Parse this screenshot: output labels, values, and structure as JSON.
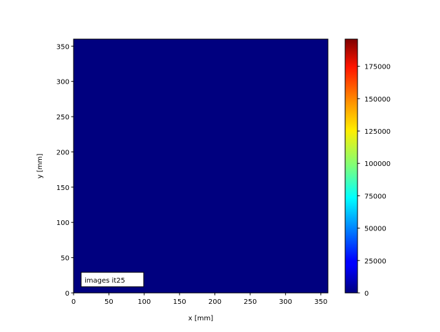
{
  "chart_data": {
    "type": "heatmap",
    "title": "",
    "xlabel": "x [mm]",
    "ylabel": "y [mm]",
    "xlim": [
      0,
      360
    ],
    "ylim": [
      0,
      360
    ],
    "xticks": [
      0,
      50,
      100,
      150,
      200,
      250,
      300,
      350
    ],
    "yticks": [
      0,
      50,
      100,
      150,
      200,
      250,
      300,
      350
    ],
    "values": [
      [
        0
      ]
    ],
    "colormap": "jet",
    "fill_color": "#00007f",
    "annotation": "images it25",
    "annotation_placement": "bottom-left",
    "colorbar": {
      "range": [
        0,
        196000
      ],
      "ticks": [
        0,
        25000,
        50000,
        75000,
        100000,
        125000,
        150000,
        175000
      ],
      "tick_labels": [
        "0",
        "25000",
        "50000",
        "75000",
        "100000",
        "125000",
        "150000",
        "175000"
      ]
    },
    "grid": false
  }
}
